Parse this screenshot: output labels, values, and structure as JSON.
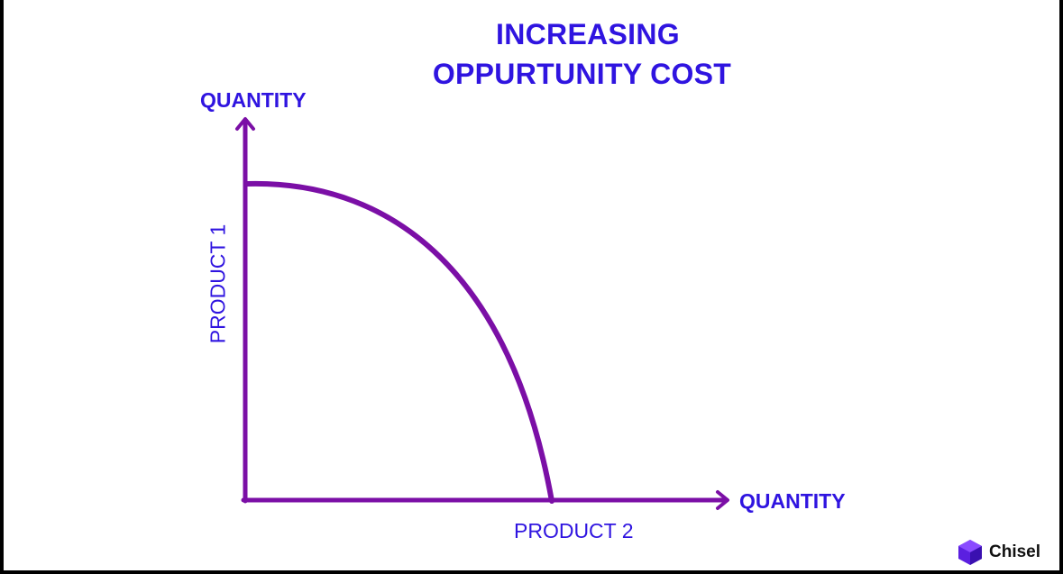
{
  "title": {
    "line1": "INCREASING",
    "line2": "OPPURTUNITY COST"
  },
  "axes": {
    "y_axis_label": "QUANTITY",
    "y_axis_title": "PRODUCT 1",
    "x_axis_label": "QUANTITY",
    "x_axis_title": "PRODUCT 2"
  },
  "curve": {
    "description_type": "production-possibilities-frontier"
  },
  "colors": {
    "text": "#2f14e0",
    "axes": "#7b0fa6",
    "curve": "#7b0fa6"
  },
  "brand": {
    "name": "Chisel",
    "icon": "hexagon-logo-icon"
  }
}
